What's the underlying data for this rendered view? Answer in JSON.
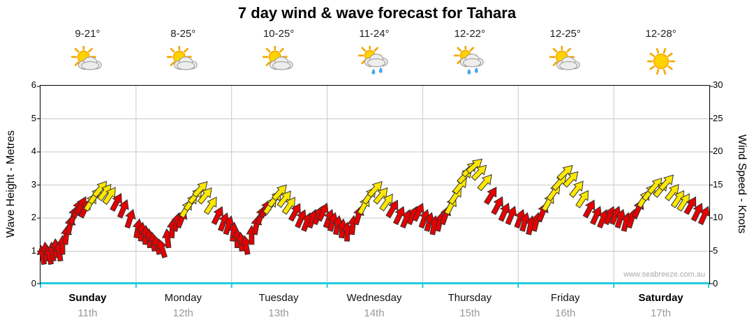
{
  "title": "7 day wind & wave forecast for Tahara",
  "watermark": "www.seabreeze.com.au",
  "axes": {
    "left_title": "Wave Height - Metres",
    "right_title": "Wind Speed - Knots",
    "left_ticks": [
      0,
      1,
      2,
      3,
      4,
      5,
      6
    ],
    "right_ticks": [
      0,
      5,
      10,
      15,
      20,
      25,
      30
    ]
  },
  "days": [
    {
      "name": "Sunday",
      "date": "11th",
      "temp": "9-21°",
      "icon": "partly-cloudy",
      "bold": true
    },
    {
      "name": "Monday",
      "date": "12th",
      "temp": "8-25°",
      "icon": "partly-cloudy",
      "bold": false
    },
    {
      "name": "Tuesday",
      "date": "13th",
      "temp": "10-25°",
      "icon": "partly-cloudy",
      "bold": false
    },
    {
      "name": "Wednesday",
      "date": "14th",
      "temp": "11-24°",
      "icon": "showers",
      "bold": false
    },
    {
      "name": "Thursday",
      "date": "15th",
      "temp": "12-22°",
      "icon": "showers",
      "bold": false
    },
    {
      "name": "Friday",
      "date": "16th",
      "temp": "12-25°",
      "icon": "partly-cloudy",
      "bold": false
    },
    {
      "name": "Saturday",
      "date": "17th",
      "temp": "12-28°",
      "icon": "sunny",
      "bold": true
    }
  ],
  "colors": {
    "arrow_red": "#e60000",
    "arrow_yellow": "#ffe800",
    "axis_bottom": "#21ccdd",
    "grid": "#c8c8c8"
  },
  "chart_data": {
    "type": "scatter",
    "title": "7 day wind & wave forecast for Tahara",
    "categories": [
      "Sunday 11th",
      "Monday 12th",
      "Tuesday 13th",
      "Wednesday 14th",
      "Thursday 15th",
      "Friday 16th",
      "Saturday 17th"
    ],
    "left_axis": "Wave Height - Metres",
    "right_axis": "Wind Speed - Knots",
    "ylim_left": [
      0,
      6
    ],
    "ylim_right": [
      0,
      30
    ],
    "grid": true,
    "points_format": [
      "day_index",
      "time_fraction_of_day",
      "wind_knots",
      "color(r=red,y=yellow)",
      "arrow_direction_deg"
    ],
    "points": [
      [
        0,
        0.02,
        4.5,
        "r",
        -100
      ],
      [
        0,
        0.055,
        5,
        "r",
        -95
      ],
      [
        0,
        0.09,
        4.5,
        "r",
        -102
      ],
      [
        0,
        0.125,
        5,
        "r",
        -97
      ],
      [
        0,
        0.16,
        5.5,
        "r",
        -93
      ],
      [
        0,
        0.195,
        5,
        "r",
        -98
      ],
      [
        0,
        0.23,
        6,
        "r",
        -90
      ],
      [
        0,
        0.27,
        7.5,
        "r",
        -84
      ],
      [
        0,
        0.31,
        9,
        "r",
        -78
      ],
      [
        0,
        0.35,
        10.5,
        "r",
        -72
      ],
      [
        0,
        0.39,
        11.5,
        "r",
        -66
      ],
      [
        0,
        0.43,
        12,
        "r",
        -62
      ],
      [
        0,
        0.47,
        11.5,
        "r",
        -64
      ],
      [
        0,
        0.53,
        12.5,
        "y",
        -58
      ],
      [
        0,
        0.58,
        13.5,
        "y",
        -54
      ],
      [
        0,
        0.63,
        14.5,
        "y",
        -50
      ],
      [
        0,
        0.68,
        14,
        "y",
        -53
      ],
      [
        0,
        0.73,
        13.5,
        "y",
        -56
      ],
      [
        0,
        0.8,
        12.5,
        "r",
        -62
      ],
      [
        0,
        0.87,
        11.5,
        "r",
        -67
      ],
      [
        0,
        0.94,
        10,
        "r",
        -72
      ],
      [
        1,
        0.02,
        8.5,
        "r",
        -80
      ],
      [
        1,
        0.06,
        8,
        "r",
        -84
      ],
      [
        1,
        0.1,
        7.5,
        "r",
        -88
      ],
      [
        1,
        0.14,
        7,
        "r",
        -93
      ],
      [
        1,
        0.18,
        6.5,
        "r",
        -98
      ],
      [
        1,
        0.22,
        6,
        "r",
        -104
      ],
      [
        1,
        0.27,
        5.5,
        "r",
        -108
      ],
      [
        1,
        0.33,
        7,
        "r",
        -96
      ],
      [
        1,
        0.38,
        8.5,
        "r",
        -86
      ],
      [
        1,
        0.43,
        9.5,
        "r",
        -76
      ],
      [
        1,
        0.48,
        10,
        "r",
        -68
      ],
      [
        1,
        0.53,
        11.5,
        "y",
        -60
      ],
      [
        1,
        0.58,
        12.5,
        "y",
        -55
      ],
      [
        1,
        0.63,
        13.5,
        "y",
        -50
      ],
      [
        1,
        0.68,
        14.5,
        "y",
        -47
      ],
      [
        1,
        0.73,
        13.5,
        "y",
        -51
      ],
      [
        1,
        0.79,
        12,
        "y",
        -57
      ],
      [
        1,
        0.86,
        10.5,
        "r",
        -64
      ],
      [
        1,
        0.92,
        9.5,
        "r",
        -69
      ],
      [
        1,
        0.97,
        9,
        "r",
        -73
      ],
      [
        2,
        0.02,
        8,
        "r",
        -84
      ],
      [
        2,
        0.06,
        7,
        "r",
        -90
      ],
      [
        2,
        0.1,
        6.5,
        "r",
        -95
      ],
      [
        2,
        0.15,
        6,
        "r",
        -100
      ],
      [
        2,
        0.21,
        7.5,
        "r",
        -90
      ],
      [
        2,
        0.26,
        9,
        "r",
        -80
      ],
      [
        2,
        0.31,
        10.5,
        "r",
        -70
      ],
      [
        2,
        0.36,
        11.5,
        "r",
        -62
      ],
      [
        2,
        0.41,
        12,
        "y",
        -56
      ],
      [
        2,
        0.46,
        13,
        "y",
        -51
      ],
      [
        2,
        0.51,
        14,
        "y",
        -48
      ],
      [
        2,
        0.56,
        13,
        "y",
        -52
      ],
      [
        2,
        0.61,
        12,
        "y",
        -56
      ],
      [
        2,
        0.67,
        11,
        "r",
        -61
      ],
      [
        2,
        0.73,
        10,
        "r",
        -66
      ],
      [
        2,
        0.79,
        9.5,
        "r",
        -70
      ],
      [
        2,
        0.85,
        10,
        "r",
        -71
      ],
      [
        2,
        0.91,
        10.5,
        "r",
        -68
      ],
      [
        2,
        0.96,
        11,
        "r",
        -65
      ],
      [
        3,
        0.02,
        10,
        "r",
        -70
      ],
      [
        3,
        0.06,
        9.5,
        "r",
        -74
      ],
      [
        3,
        0.11,
        9,
        "r",
        -79
      ],
      [
        3,
        0.16,
        8.5,
        "r",
        -84
      ],
      [
        3,
        0.21,
        8,
        "r",
        -89
      ],
      [
        3,
        0.27,
        9,
        "r",
        -84
      ],
      [
        3,
        0.33,
        10.5,
        "r",
        -74
      ],
      [
        3,
        0.39,
        12,
        "y",
        -62
      ],
      [
        3,
        0.45,
        13.5,
        "y",
        -54
      ],
      [
        3,
        0.51,
        14.5,
        "y",
        -48
      ],
      [
        3,
        0.57,
        13.5,
        "y",
        -51
      ],
      [
        3,
        0.63,
        12.5,
        "y",
        -55
      ],
      [
        3,
        0.69,
        11.5,
        "r",
        -60
      ],
      [
        3,
        0.76,
        10.5,
        "r",
        -65
      ],
      [
        3,
        0.83,
        10,
        "r",
        -68
      ],
      [
        3,
        0.9,
        10.5,
        "r",
        -66
      ],
      [
        3,
        0.96,
        11,
        "r",
        -64
      ],
      [
        4,
        0.02,
        10,
        "r",
        -70
      ],
      [
        4,
        0.07,
        9.5,
        "r",
        -75
      ],
      [
        4,
        0.12,
        9,
        "r",
        -80
      ],
      [
        4,
        0.18,
        9.5,
        "r",
        -77
      ],
      [
        4,
        0.24,
        10.5,
        "r",
        -71
      ],
      [
        4,
        0.3,
        12,
        "y",
        -62
      ],
      [
        4,
        0.35,
        13.5,
        "y",
        -56
      ],
      [
        4,
        0.4,
        15,
        "y",
        -51
      ],
      [
        4,
        0.45,
        16.5,
        "y",
        -47
      ],
      [
        4,
        0.5,
        17.5,
        "y",
        -44
      ],
      [
        4,
        0.55,
        18,
        "y",
        -42
      ],
      [
        4,
        0.6,
        17,
        "y",
        -46
      ],
      [
        4,
        0.66,
        15.5,
        "y",
        -50
      ],
      [
        4,
        0.72,
        13.5,
        "r",
        -58
      ],
      [
        4,
        0.79,
        12,
        "r",
        -62
      ],
      [
        4,
        0.86,
        11,
        "r",
        -66
      ],
      [
        4,
        0.93,
        10.5,
        "r",
        -68
      ],
      [
        5,
        0.02,
        10,
        "r",
        -70
      ],
      [
        5,
        0.07,
        9.5,
        "r",
        -74
      ],
      [
        5,
        0.13,
        9,
        "r",
        -78
      ],
      [
        5,
        0.19,
        9.5,
        "r",
        -76
      ],
      [
        5,
        0.26,
        11,
        "r",
        -68
      ],
      [
        5,
        0.32,
        12.5,
        "y",
        -60
      ],
      [
        5,
        0.38,
        14,
        "y",
        -54
      ],
      [
        5,
        0.44,
        15.5,
        "y",
        -48
      ],
      [
        5,
        0.5,
        17,
        "y",
        -44
      ],
      [
        5,
        0.56,
        16,
        "y",
        -47
      ],
      [
        5,
        0.62,
        14.5,
        "y",
        -52
      ],
      [
        5,
        0.68,
        13,
        "y",
        -57
      ],
      [
        5,
        0.75,
        11.5,
        "r",
        -62
      ],
      [
        5,
        0.82,
        10.5,
        "r",
        -66
      ],
      [
        5,
        0.89,
        10,
        "r",
        -68
      ],
      [
        5,
        0.96,
        10.5,
        "r",
        -66
      ],
      [
        6,
        0.02,
        10.5,
        "r",
        -68
      ],
      [
        6,
        0.07,
        10,
        "r",
        -72
      ],
      [
        6,
        0.13,
        9.5,
        "r",
        -76
      ],
      [
        6,
        0.19,
        10,
        "r",
        -73
      ],
      [
        6,
        0.26,
        11.5,
        "r",
        -66
      ],
      [
        6,
        0.32,
        13,
        "y",
        -58
      ],
      [
        6,
        0.38,
        14,
        "y",
        -53
      ],
      [
        6,
        0.44,
        15,
        "y",
        -49
      ],
      [
        6,
        0.5,
        14.5,
        "y",
        -51
      ],
      [
        6,
        0.56,
        15.5,
        "y",
        -48
      ],
      [
        6,
        0.62,
        14,
        "y",
        -52
      ],
      [
        6,
        0.68,
        13,
        "y",
        -56
      ],
      [
        6,
        0.74,
        12.5,
        "y",
        -58
      ],
      [
        6,
        0.81,
        12,
        "r",
        -60
      ],
      [
        6,
        0.88,
        11,
        "r",
        -64
      ],
      [
        6,
        0.95,
        10.5,
        "r",
        -66
      ]
    ]
  }
}
